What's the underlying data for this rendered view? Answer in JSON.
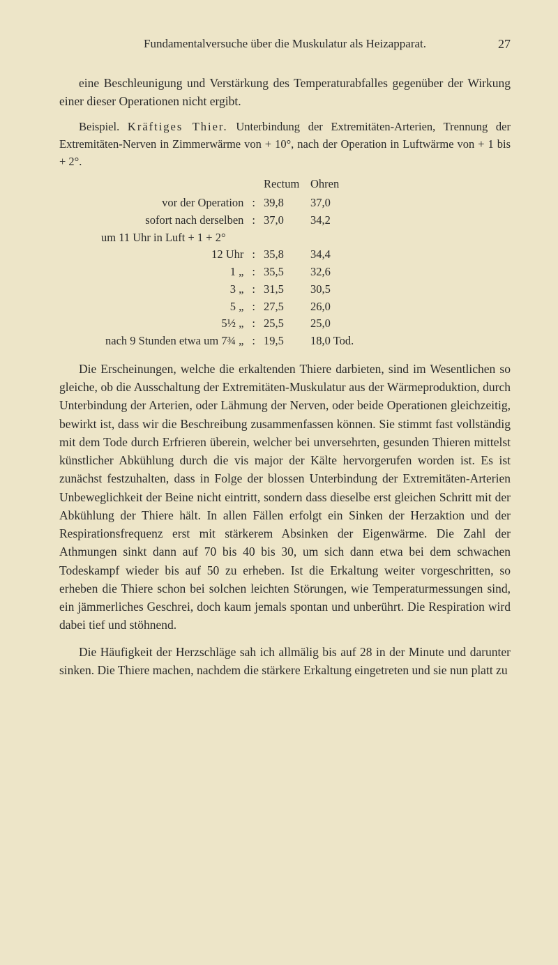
{
  "header": {
    "running_title": "Fundamentalversuche über die Muskulatur als Heizapparat.",
    "page_number": "27"
  },
  "intro": {
    "p1": "eine Beschleunigung und Verstärkung des Temperaturabfalles gegenüber der Wirkung einer dieser Operationen nicht ergibt.",
    "p2_a": "Beispiel. ",
    "p2_b_spaced": "Kräftiges Thier.",
    "p2_c": " Unterbindung der Extremitäten-Arterien, Trennung der Extremitäten-Nerven in Zimmerwärme von + 10°, nach der Operation in Luftwärme von + 1 bis + 2°."
  },
  "table": {
    "head_rectum": "Rectum",
    "head_ohren": "Ohren",
    "rows": [
      {
        "label": "vor der Operation",
        "colon": ":",
        "rectum": "39,8",
        "ohren": "37,0"
      },
      {
        "label": "sofort nach derselben",
        "colon": ":",
        "rectum": "37,0",
        "ohren": "34,2"
      }
    ],
    "mid_line": "um 11 Uhr in Luft + 1 + 2°",
    "rows2": [
      {
        "label": "12   Uhr",
        "colon": ":",
        "rectum": "35,8",
        "ohren": "34,4"
      },
      {
        "label": "1      „",
        "colon": ":",
        "rectum": "35,5",
        "ohren": "32,6"
      },
      {
        "label": "3      „",
        "colon": ":",
        "rectum": "31,5",
        "ohren": "30,5"
      },
      {
        "label": "5      „",
        "colon": ":",
        "rectum": "27,5",
        "ohren": "26,0"
      },
      {
        "label": "5½   „",
        "colon": ":",
        "rectum": "25,5",
        "ohren": "25,0"
      },
      {
        "label": "nach 9 Stunden etwa um 7¾   „",
        "colon": ":",
        "rectum": "19,5",
        "ohren": "18,0 Tod."
      }
    ]
  },
  "body": {
    "p3": "Die Erscheinungen, welche die erkaltenden Thiere darbieten, sind im Wesentlichen so gleiche, ob die Ausschaltung der Extremitäten-Muskulatur aus der Wärmeproduktion, durch Unterbindung der Arterien, oder Lähmung der Nerven, oder beide Operationen gleichzeitig, bewirkt ist, dass wir die Beschreibung zusammenfassen können. Sie stimmt fast vollständig mit dem Tode durch Erfrieren überein, welcher bei unversehrten, gesunden Thieren mittelst künstlicher Abkühlung durch die vis major der Kälte hervorgerufen worden ist. Es ist zunächst festzuhalten, dass in Folge der blossen Unterbindung der Extremitäten-Arterien Unbeweglichkeit der Beine nicht eintritt, sondern dass dieselbe erst gleichen Schritt mit der Abkühlung der Thiere hält. In allen Fällen erfolgt ein Sinken der Herzaktion und der Respirationsfrequenz erst mit stärkerem Absinken der Eigenwärme. Die Zahl der Athmungen sinkt dann auf 70 bis 40 bis 30, um sich dann etwa bei dem schwachen Todeskampf wieder bis auf 50 zu erheben. Ist die Erkaltung weiter vorgeschritten, so erheben die Thiere schon bei solchen leichten Störungen, wie Temperaturmessungen sind, ein jämmerliches Geschrei, doch kaum jemals spontan und unberührt. Die Respiration wird dabei tief und stöhnend.",
    "p4": "Die Häufigkeit der Herzschläge sah ich allmälig bis auf 28 in der Minute und darunter sinken. Die Thiere machen, nachdem die stärkere Erkaltung eingetreten und sie nun platt zu"
  },
  "style": {
    "background_color": "#ede5c8",
    "text_color": "#2a2a2a",
    "body_fontsize": 17.5,
    "table_fontsize": 16.5
  }
}
